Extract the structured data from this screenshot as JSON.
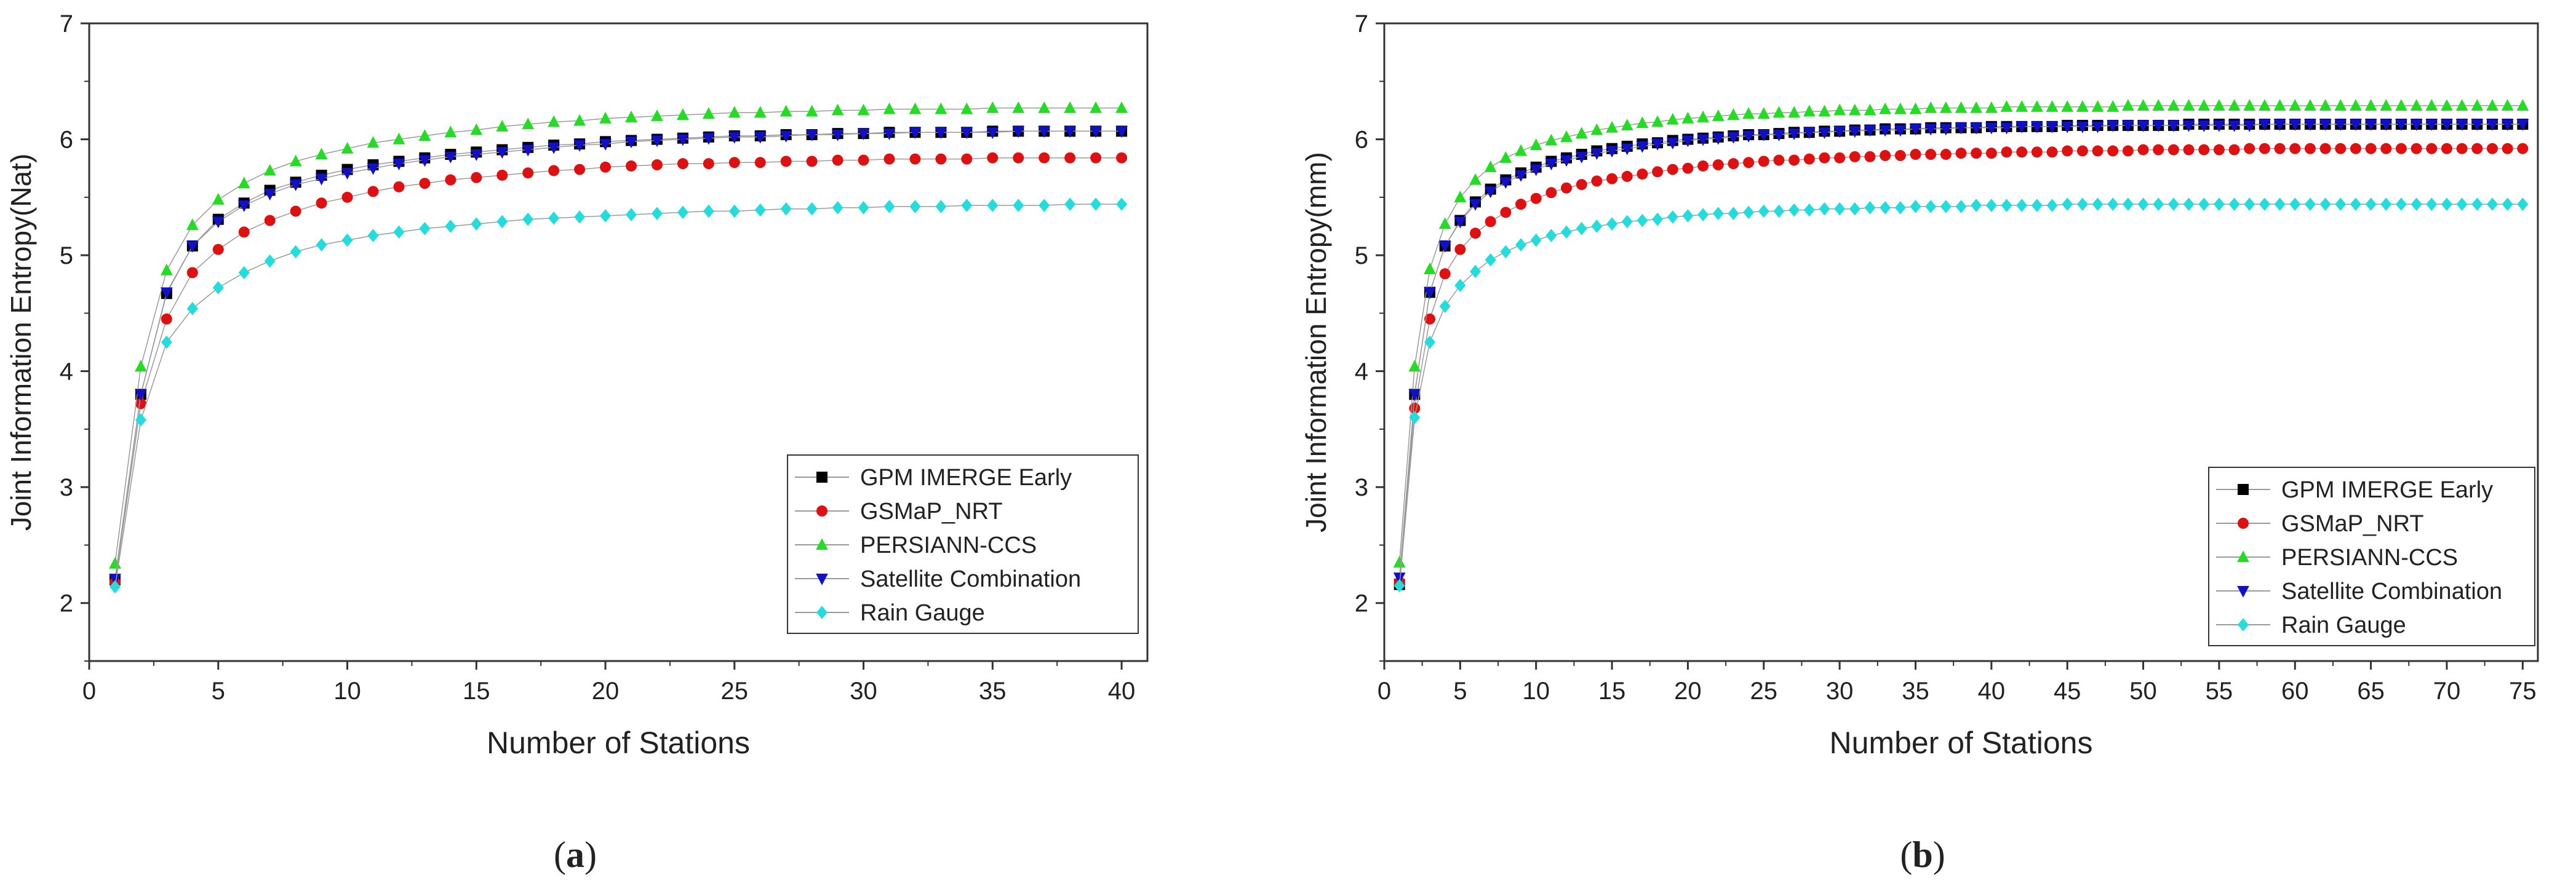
{
  "chart_data": [
    {
      "type": "line",
      "panel_label": "a",
      "title": "",
      "xlabel": "Number of Stations",
      "ylabel": "Joint Information Entropy(Nat)",
      "xlim": [
        0,
        41
      ],
      "ylim": [
        1.5,
        7
      ],
      "xticks": [
        0,
        5,
        10,
        15,
        20,
        25,
        30,
        35,
        40
      ],
      "yticks": [
        2,
        3,
        4,
        5,
        6,
        7
      ],
      "legend_position": "bottom-right",
      "x": [
        1,
        2,
        3,
        4,
        5,
        6,
        7,
        8,
        9,
        10,
        11,
        12,
        13,
        14,
        15,
        16,
        17,
        18,
        19,
        20,
        21,
        22,
        23,
        24,
        25,
        26,
        27,
        28,
        29,
        30,
        31,
        32,
        33,
        34,
        35,
        36,
        37,
        38,
        39,
        40
      ],
      "series": [
        {
          "name": "GPM IMERGE Early",
          "color": "#000000",
          "marker": "square",
          "values": [
            2.2,
            3.8,
            4.67,
            5.08,
            5.31,
            5.45,
            5.56,
            5.63,
            5.69,
            5.74,
            5.78,
            5.81,
            5.84,
            5.87,
            5.89,
            5.91,
            5.93,
            5.95,
            5.96,
            5.98,
            5.99,
            6.0,
            6.01,
            6.02,
            6.03,
            6.03,
            6.04,
            6.04,
            6.05,
            6.05,
            6.06,
            6.06,
            6.06,
            6.06,
            6.07,
            6.07,
            6.07,
            6.07,
            6.07,
            6.07
          ]
        },
        {
          "name": "GSMaP_NRT",
          "color": "#e01010",
          "marker": "circle",
          "values": [
            2.18,
            3.72,
            4.45,
            4.85,
            5.05,
            5.2,
            5.3,
            5.38,
            5.45,
            5.5,
            5.55,
            5.59,
            5.62,
            5.65,
            5.67,
            5.69,
            5.71,
            5.73,
            5.74,
            5.76,
            5.77,
            5.78,
            5.79,
            5.79,
            5.8,
            5.8,
            5.81,
            5.81,
            5.82,
            5.82,
            5.83,
            5.83,
            5.83,
            5.83,
            5.84,
            5.84,
            5.84,
            5.84,
            5.84,
            5.84
          ]
        },
        {
          "name": "PERSIANN-CCS",
          "color": "#22dd22",
          "marker": "triangle-up",
          "values": [
            2.34,
            4.04,
            4.87,
            5.26,
            5.48,
            5.62,
            5.73,
            5.81,
            5.87,
            5.92,
            5.97,
            6.0,
            6.03,
            6.06,
            6.08,
            6.11,
            6.13,
            6.15,
            6.16,
            6.18,
            6.19,
            6.2,
            6.21,
            6.22,
            6.23,
            6.23,
            6.24,
            6.24,
            6.25,
            6.25,
            6.26,
            6.26,
            6.26,
            6.26,
            6.27,
            6.27,
            6.27,
            6.27,
            6.27,
            6.27
          ]
        },
        {
          "name": "Satellite Combination",
          "color": "#1010cc",
          "marker": "triangle-down",
          "values": [
            2.21,
            3.8,
            4.68,
            5.08,
            5.29,
            5.43,
            5.53,
            5.61,
            5.66,
            5.71,
            5.75,
            5.79,
            5.82,
            5.85,
            5.87,
            5.89,
            5.91,
            5.93,
            5.95,
            5.96,
            5.98,
            5.99,
            6.0,
            6.01,
            6.02,
            6.02,
            6.03,
            6.04,
            6.04,
            6.05,
            6.05,
            6.06,
            6.06,
            6.06,
            6.06,
            6.07,
            6.07,
            6.07,
            6.07,
            6.07
          ]
        },
        {
          "name": "Rain Gauge",
          "color": "#22dddd",
          "marker": "diamond",
          "values": [
            2.14,
            3.58,
            4.25,
            4.54,
            4.72,
            4.85,
            4.95,
            5.03,
            5.09,
            5.13,
            5.17,
            5.2,
            5.23,
            5.25,
            5.27,
            5.29,
            5.31,
            5.32,
            5.33,
            5.34,
            5.35,
            5.36,
            5.37,
            5.38,
            5.38,
            5.39,
            5.4,
            5.4,
            5.41,
            5.41,
            5.42,
            5.42,
            5.42,
            5.43,
            5.43,
            5.43,
            5.43,
            5.44,
            5.44,
            5.44
          ]
        }
      ]
    },
    {
      "type": "line",
      "panel_label": "b",
      "title": "",
      "xlabel": "Number of Stations",
      "ylabel": "Joint Information Entropy(mm)",
      "xlim": [
        0,
        76
      ],
      "ylim": [
        1.5,
        7
      ],
      "xticks": [
        0,
        5,
        10,
        15,
        20,
        25,
        30,
        35,
        40,
        45,
        50,
        55,
        60,
        65,
        70,
        75
      ],
      "yticks": [
        2,
        3,
        4,
        5,
        6,
        7
      ],
      "legend_position": "bottom-right",
      "x": [
        1,
        2,
        3,
        4,
        5,
        6,
        7,
        8,
        9,
        10,
        11,
        12,
        13,
        14,
        15,
        16,
        17,
        18,
        19,
        20,
        21,
        22,
        23,
        24,
        25,
        26,
        27,
        28,
        29,
        30,
        31,
        32,
        33,
        34,
        35,
        36,
        37,
        38,
        39,
        40,
        41,
        42,
        43,
        44,
        45,
        46,
        47,
        48,
        49,
        50,
        51,
        52,
        53,
        54,
        55,
        56,
        57,
        58,
        59,
        60,
        61,
        62,
        63,
        64,
        65,
        66,
        67,
        68,
        69,
        70,
        71,
        72,
        73,
        74,
        75
      ],
      "series": [
        {
          "name": "GPM IMERGE Early",
          "color": "#000000",
          "marker": "square",
          "values": [
            2.16,
            3.8,
            4.68,
            5.08,
            5.3,
            5.46,
            5.57,
            5.65,
            5.71,
            5.76,
            5.81,
            5.84,
            5.87,
            5.9,
            5.92,
            5.94,
            5.96,
            5.97,
            5.99,
            6.0,
            6.01,
            6.02,
            6.03,
            6.04,
            6.04,
            6.05,
            6.06,
            6.06,
            6.07,
            6.07,
            6.08,
            6.08,
            6.09,
            6.09,
            6.09,
            6.1,
            6.1,
            6.1,
            6.1,
            6.11,
            6.11,
            6.11,
            6.11,
            6.11,
            6.12,
            6.12,
            6.12,
            6.12,
            6.12,
            6.12,
            6.12,
            6.12,
            6.13,
            6.13,
            6.13,
            6.13,
            6.13,
            6.13,
            6.13,
            6.13,
            6.13,
            6.13,
            6.13,
            6.13,
            6.13,
            6.13,
            6.13,
            6.13,
            6.13,
            6.13,
            6.13,
            6.13,
            6.13,
            6.13,
            6.13
          ]
        },
        {
          "name": "GSMaP_NRT",
          "color": "#e01010",
          "marker": "circle",
          "values": [
            2.18,
            3.68,
            4.45,
            4.84,
            5.05,
            5.19,
            5.29,
            5.37,
            5.44,
            5.49,
            5.54,
            5.58,
            5.61,
            5.64,
            5.66,
            5.68,
            5.7,
            5.72,
            5.74,
            5.75,
            5.77,
            5.78,
            5.79,
            5.8,
            5.81,
            5.82,
            5.82,
            5.83,
            5.84,
            5.84,
            5.85,
            5.85,
            5.86,
            5.86,
            5.87,
            5.87,
            5.87,
            5.88,
            5.88,
            5.88,
            5.89,
            5.89,
            5.89,
            5.89,
            5.9,
            5.9,
            5.9,
            5.9,
            5.9,
            5.91,
            5.91,
            5.91,
            5.91,
            5.91,
            5.91,
            5.91,
            5.92,
            5.92,
            5.92,
            5.92,
            5.92,
            5.92,
            5.92,
            5.92,
            5.92,
            5.92,
            5.92,
            5.92,
            5.92,
            5.92,
            5.92,
            5.92,
            5.92,
            5.92,
            5.92
          ]
        },
        {
          "name": "PERSIANN-CCS",
          "color": "#22dd22",
          "marker": "triangle-up",
          "values": [
            2.35,
            4.04,
            4.88,
            5.27,
            5.5,
            5.65,
            5.76,
            5.84,
            5.9,
            5.95,
            5.99,
            6.02,
            6.05,
            6.08,
            6.1,
            6.12,
            6.14,
            6.15,
            6.17,
            6.18,
            6.19,
            6.2,
            6.21,
            6.22,
            6.22,
            6.23,
            6.23,
            6.24,
            6.24,
            6.25,
            6.25,
            6.25,
            6.26,
            6.26,
            6.26,
            6.27,
            6.27,
            6.27,
            6.27,
            6.27,
            6.28,
            6.28,
            6.28,
            6.28,
            6.28,
            6.28,
            6.28,
            6.28,
            6.29,
            6.29,
            6.29,
            6.29,
            6.29,
            6.29,
            6.29,
            6.29,
            6.29,
            6.29,
            6.29,
            6.29,
            6.29,
            6.29,
            6.29,
            6.29,
            6.29,
            6.29,
            6.29,
            6.29,
            6.29,
            6.29,
            6.29,
            6.29,
            6.29,
            6.29,
            6.29
          ]
        },
        {
          "name": "Satellite Combination",
          "color": "#1010cc",
          "marker": "triangle-down",
          "values": [
            2.22,
            3.8,
            4.68,
            5.08,
            5.29,
            5.44,
            5.55,
            5.63,
            5.69,
            5.74,
            5.79,
            5.82,
            5.85,
            5.88,
            5.9,
            5.92,
            5.94,
            5.96,
            5.97,
            5.99,
            6.0,
            6.01,
            6.02,
            6.03,
            6.04,
            6.04,
            6.05,
            6.06,
            6.06,
            6.07,
            6.07,
            6.08,
            6.08,
            6.08,
            6.09,
            6.09,
            6.09,
            6.1,
            6.1,
            6.1,
            6.1,
            6.11,
            6.11,
            6.11,
            6.11,
            6.11,
            6.11,
            6.12,
            6.12,
            6.12,
            6.12,
            6.12,
            6.12,
            6.12,
            6.12,
            6.12,
            6.12,
            6.13,
            6.13,
            6.13,
            6.13,
            6.13,
            6.13,
            6.13,
            6.13,
            6.13,
            6.13,
            6.13,
            6.13,
            6.13,
            6.13,
            6.13,
            6.13,
            6.13,
            6.13
          ]
        },
        {
          "name": "Rain Gauge",
          "color": "#22dddd",
          "marker": "diamond",
          "values": [
            2.15,
            3.6,
            4.25,
            4.56,
            4.74,
            4.86,
            4.96,
            5.03,
            5.09,
            5.13,
            5.17,
            5.2,
            5.23,
            5.25,
            5.27,
            5.29,
            5.3,
            5.31,
            5.33,
            5.34,
            5.35,
            5.36,
            5.36,
            5.37,
            5.38,
            5.38,
            5.39,
            5.39,
            5.4,
            5.4,
            5.4,
            5.41,
            5.41,
            5.41,
            5.42,
            5.42,
            5.42,
            5.42,
            5.43,
            5.43,
            5.43,
            5.43,
            5.43,
            5.43,
            5.44,
            5.44,
            5.44,
            5.44,
            5.44,
            5.44,
            5.44,
            5.44,
            5.44,
            5.44,
            5.44,
            5.44,
            5.44,
            5.44,
            5.44,
            5.44,
            5.44,
            5.44,
            5.44,
            5.44,
            5.44,
            5.44,
            5.44,
            5.44,
            5.44,
            5.44,
            5.44,
            5.44,
            5.44,
            5.44,
            5.44
          ]
        }
      ]
    }
  ]
}
